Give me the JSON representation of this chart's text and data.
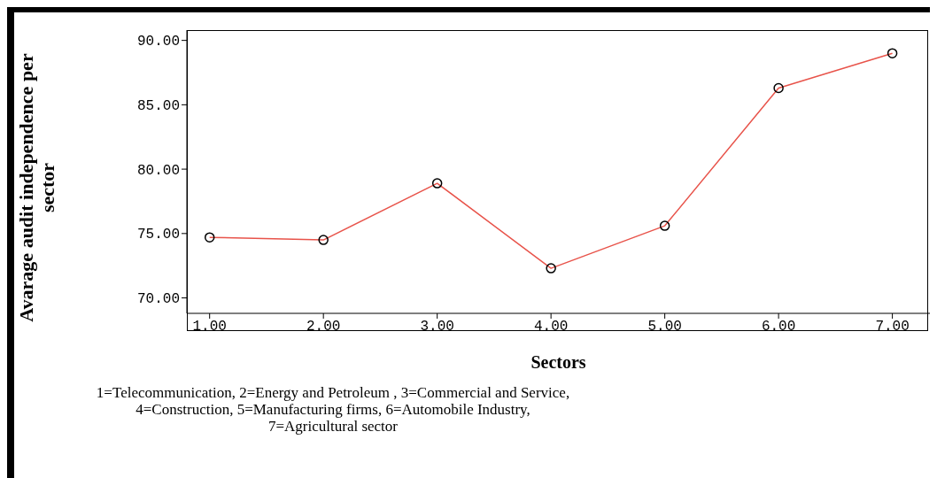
{
  "chart_data": {
    "type": "line",
    "xlabel": "Sectors",
    "ylabel": "Avarage audit independence per sector",
    "x": [
      1,
      2,
      3,
      4,
      5,
      6,
      7
    ],
    "series": [
      {
        "color": "#e8534a",
        "values": [
          74.7,
          74.5,
          78.9,
          72.3,
          75.6,
          86.3,
          89.0
        ]
      }
    ],
    "xlim": [
      0.8,
      7.33
    ],
    "xticks": [
      {
        "value": 1,
        "label": "1.00"
      },
      {
        "value": 2,
        "label": "2.00"
      },
      {
        "value": 3,
        "label": "3.00"
      },
      {
        "value": 4,
        "label": "4.00"
      },
      {
        "value": 5,
        "label": "5.00"
      },
      {
        "value": 6,
        "label": "6.00"
      },
      {
        "value": 7,
        "label": "7.00"
      }
    ],
    "ylim": [
      68.8,
      90.8
    ],
    "yticks": [
      {
        "value": 70,
        "label": "70.00"
      },
      {
        "value": 75,
        "label": "75.00"
      },
      {
        "value": 80,
        "label": "80.00"
      },
      {
        "value": 85,
        "label": "85.00"
      },
      {
        "value": 90,
        "label": "90.00"
      }
    ],
    "grid": false,
    "legend": false,
    "marker": "circle",
    "line_style": "solid",
    "annotations": [
      "1=Telecommunication, 2=Energy and Petroleum , 3=Commercial and Service,\n4=Construction, 5=Manufacturing firms, 6=Automobile Industry,\n7=Agricultural sector"
    ]
  }
}
